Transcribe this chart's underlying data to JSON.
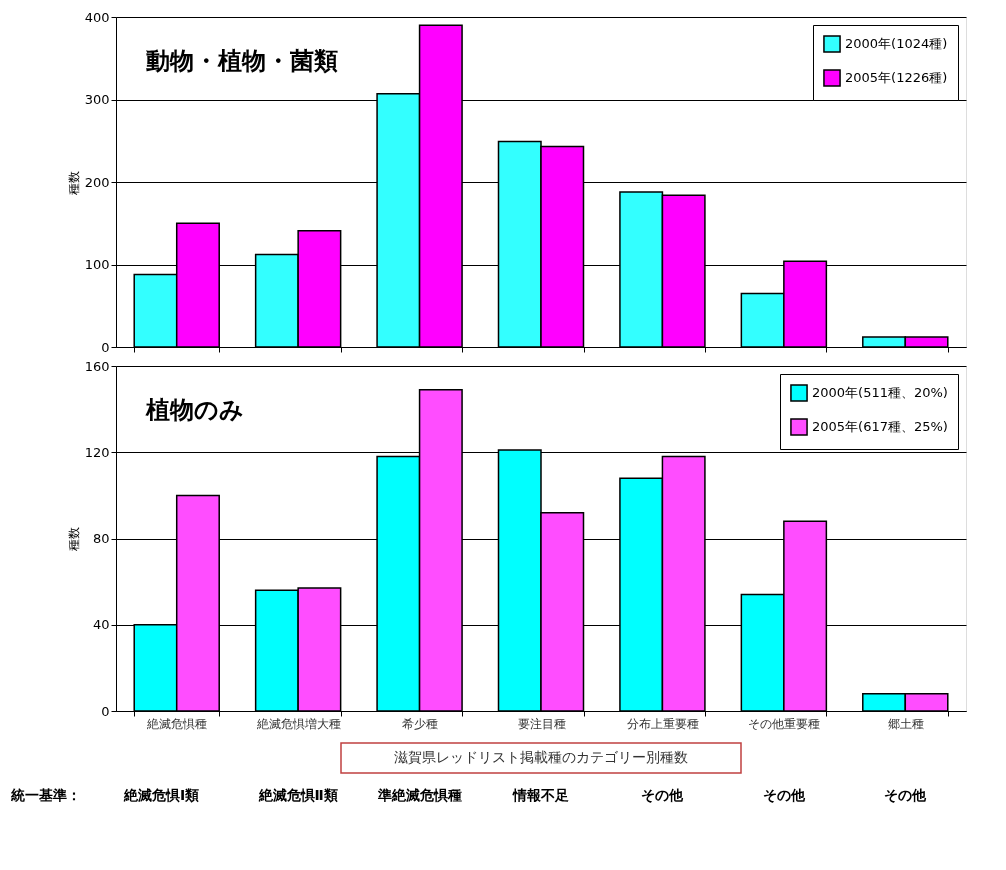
{
  "chart_data": [
    {
      "type": "bar",
      "title": "動物・植物・菌類",
      "ylabel": "種数",
      "categories": [
        null,
        null,
        null,
        null,
        null,
        null,
        null
      ],
      "series": [
        {
          "name": "2000年(1024種)",
          "color": "#33ffff",
          "values": [
            88,
            112,
            307,
            249,
            188,
            65,
            12
          ]
        },
        {
          "name": "2005年(1226種)",
          "color": "#ff00ff",
          "values": [
            150,
            141,
            390,
            243,
            184,
            104,
            12
          ]
        }
      ],
      "ylim": [
        0,
        400
      ],
      "yticks": [
        0,
        100,
        200,
        300,
        400
      ],
      "grid": "y",
      "legend": "top right",
      "tick_labels": "y"
    },
    {
      "type": "bar",
      "title": "植物のみ",
      "ylabel": "種数",
      "xlabel": "滋賀県レッドリスト掲載種のカテゴリー別種数",
      "categories": [
        "絶滅危惧種",
        "絶滅危惧増大種",
        "希少種",
        "要注目種",
        "分布上重要種",
        "その他重要種",
        "郷土種"
      ],
      "series": [
        {
          "name": "2000年(511種、20%)",
          "color": "#00ffff",
          "values": [
            40,
            56,
            118,
            121,
            108,
            54,
            8
          ]
        },
        {
          "name": "2005年(617種、25%)",
          "color": "#ff4dff",
          "values": [
            100,
            57,
            149,
            92,
            118,
            88,
            8
          ]
        }
      ],
      "ylim": [
        0,
        160
      ],
      "yticks": [
        0,
        40,
        80,
        120,
        160
      ],
      "grid": "y",
      "legend": "top right",
      "annotations": [
        "統一基準：",
        "絶滅危惧Ⅰ類",
        "絶滅危惧Ⅱ類",
        "準絶滅危惧種",
        "情報不足",
        "その他",
        "その他",
        "その他"
      ]
    }
  ]
}
